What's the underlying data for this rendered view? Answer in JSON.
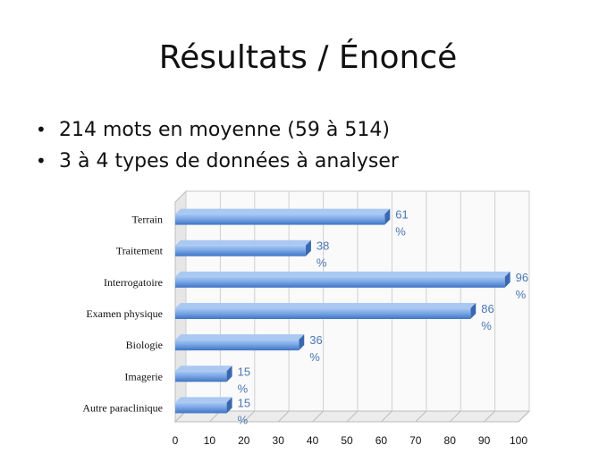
{
  "slide": {
    "title": "Résultats / Énoncé",
    "bullets": [
      "214 mots en moyenne (59 à 514)",
      "3 à 4 types de données à analyser"
    ]
  },
  "chart_data": {
    "type": "bar",
    "orientation": "horizontal",
    "categories": [
      "Terrain",
      "Traitement",
      "Interrogatoire",
      "Examen physique",
      "Biologie",
      "Imagerie",
      "Autre paraclinique"
    ],
    "values": [
      61,
      38,
      96,
      86,
      36,
      15,
      15
    ],
    "data_labels": [
      "61\n%",
      "38\n%",
      "96\n%",
      "86\n%",
      "36\n%",
      "15\n%",
      "15\n%"
    ],
    "xlim": [
      0,
      100
    ],
    "xticks": [
      0,
      10,
      20,
      30,
      40,
      50,
      60,
      70,
      80,
      90,
      100
    ],
    "title": "",
    "xlabel": "",
    "ylabel": "",
    "grid": true,
    "legend": "none",
    "colors": {
      "bar": "#5b8fd8",
      "bar_light": "#a9c8f2",
      "label": "#4a77b5",
      "grid": "#cfcfcf"
    }
  }
}
